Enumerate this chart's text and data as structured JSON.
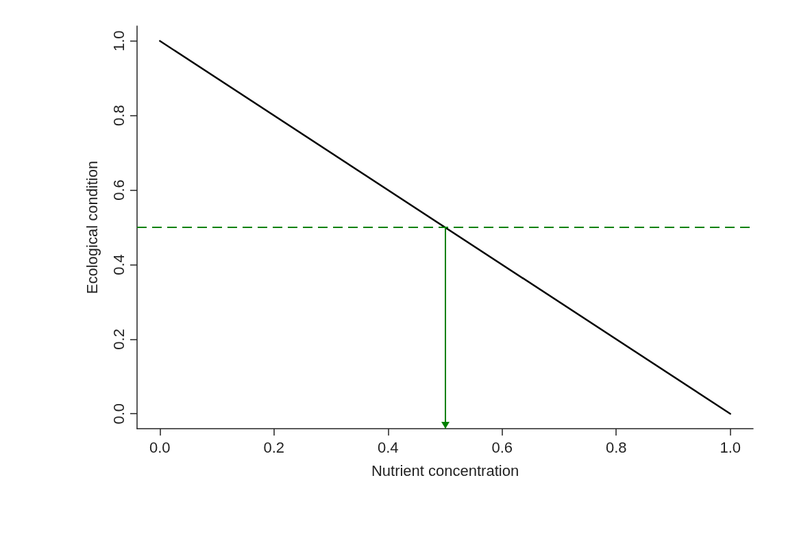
{
  "chart_data": {
    "type": "line",
    "xlabel": "Nutrient concentration",
    "ylabel": "Ecological condition",
    "x": [
      0,
      1
    ],
    "series": [
      {
        "color": "#000000",
        "values": [
          1,
          0
        ]
      }
    ],
    "xlim": [
      -0.04,
      1.04
    ],
    "ylim": [
      -0.04,
      1.04
    ],
    "xticks": [
      {
        "value": 0,
        "label": "0.0"
      },
      {
        "value": 0.2,
        "label": "0.2"
      },
      {
        "value": 0.4,
        "label": "0.4"
      },
      {
        "value": 0.6,
        "label": "0.6"
      },
      {
        "value": 0.8,
        "label": "0.8"
      },
      {
        "value": 1,
        "label": "1.0"
      }
    ],
    "yticks": [
      {
        "value": 0,
        "label": "0.0"
      },
      {
        "value": 0.2,
        "label": "0.2"
      },
      {
        "value": 0.4,
        "label": "0.4"
      },
      {
        "value": 0.6,
        "label": "0.6"
      },
      {
        "value": 0.8,
        "label": "0.8"
      },
      {
        "value": 1,
        "label": "1.0"
      }
    ],
    "ref_lines": [
      {
        "axis": "y",
        "value": 0.5,
        "color": "#008000",
        "line_style": "dashed"
      },
      {
        "axis": "x",
        "value": 0.5,
        "color": "#008000",
        "line_style": "solid"
      }
    ],
    "grid": false,
    "marker": "none",
    "line_style": "solid"
  }
}
